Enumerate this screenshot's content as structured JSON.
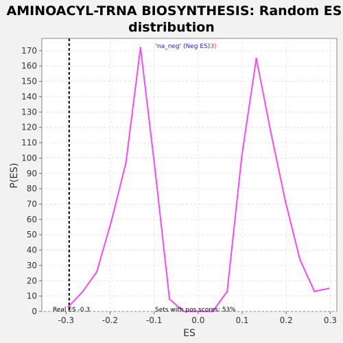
{
  "chart_data": {
    "type": "line",
    "title_lines": [
      "AMINOACYL-TRNA BIOSYNTHESIS: Random ES",
      "distribution"
    ],
    "xlabel": "ES",
    "ylabel": "P(ES)",
    "xlim": [
      -0.355,
      0.315
    ],
    "ylim": [
      0,
      178
    ],
    "xticks": [
      -0.3,
      -0.2,
      -0.1,
      0.0,
      0.1,
      0.2,
      0.3
    ],
    "xtick_labels": [
      "-0.3",
      "-0.2",
      "-0.1",
      "0.0",
      "0.1",
      "0.2",
      "0.3"
    ],
    "yticks": [
      0,
      10,
      20,
      30,
      40,
      50,
      60,
      70,
      80,
      90,
      100,
      110,
      120,
      130,
      140,
      150,
      160,
      170
    ],
    "ytick_labels": [
      "0",
      "10",
      "20",
      "30",
      "40",
      "50",
      "60",
      "70",
      "80",
      "90",
      "100",
      "110",
      "120",
      "130",
      "140",
      "150",
      "160",
      "170"
    ],
    "grid": true,
    "series": [
      {
        "name": "'na_neg' (Neg ES)",
        "color": "#ff44ff",
        "points": [
          [
            -0.295,
            3
          ],
          [
            -0.262,
            13
          ],
          [
            -0.23,
            26
          ],
          [
            -0.197,
            59
          ],
          [
            -0.164,
            97
          ],
          [
            -0.131,
            172
          ],
          [
            -0.098,
            93
          ],
          [
            -0.065,
            8
          ],
          [
            -0.033,
            0
          ],
          [
            0.0,
            0
          ],
          [
            0.033,
            0
          ],
          [
            0.066,
            13
          ],
          [
            0.099,
            101
          ],
          [
            0.132,
            165
          ],
          [
            0.165,
            117
          ],
          [
            0.198,
            72
          ],
          [
            0.231,
            34
          ],
          [
            0.264,
            13
          ],
          [
            0.297,
            15
          ]
        ]
      }
    ],
    "legend": {
      "placement": "top-center",
      "label": "'na_neg' (Neg ES)",
      "label_color": "#1a1aff",
      "suffix": "3)",
      "suffix_color": "#ff3333"
    },
    "real_es": {
      "value": -0.293,
      "label": "Real ES -0.3",
      "line_color": "#000000"
    },
    "annotation": "Sets with pos scores: 53%"
  }
}
